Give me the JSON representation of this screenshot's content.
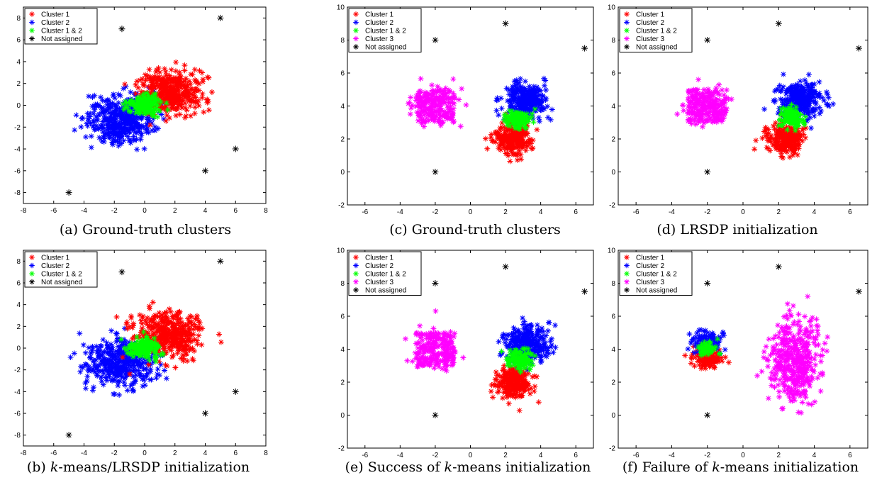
{
  "captions": {
    "a": {
      "label": "(a)",
      "text": "Ground-truth clusters"
    },
    "b": {
      "label": "(b)",
      "emph": "k",
      "text": "-means/LRSDP initialization"
    },
    "c": {
      "label": "(c)",
      "text": "Ground-truth clusters"
    },
    "d": {
      "label": "(d)",
      "text": "LRSDP initialization"
    },
    "e": {
      "label": "(e)",
      "pre": "Success of",
      "emph": "k",
      "text": "-means initialization"
    },
    "f": {
      "label": "(f)",
      "pre": "Failure of",
      "emph": "k",
      "text": "-means initialization"
    }
  },
  "colors": {
    "red": "#ff0000",
    "blue": "#0000ff",
    "green": "#00ff00",
    "magenta": "#ff00ff",
    "black": "#000000"
  },
  "chart_data": [
    {
      "id": "a",
      "type": "scatter",
      "xlim": [
        -8,
        8
      ],
      "ylim": [
        -9,
        9
      ],
      "xticks": [
        -8,
        -6,
        -4,
        -2,
        0,
        2,
        4,
        6,
        8
      ],
      "yticks": [
        -8,
        -6,
        -4,
        -2,
        0,
        2,
        4,
        6,
        8
      ],
      "legend": {
        "position": "top-left",
        "entries": [
          "Cluster 1",
          "Cluster 2",
          "Cluster 1 & 2",
          "Not assigned"
        ]
      },
      "clusters": [
        {
          "name": "Cluster 2",
          "color": "blue",
          "center": [
            -1.6,
            -1.3
          ],
          "spread": [
            1.1,
            1.1
          ],
          "count": 420
        },
        {
          "name": "Cluster 1",
          "color": "red",
          "center": [
            1.6,
            1.2
          ],
          "spread": [
            1.05,
            1.0
          ],
          "count": 420
        },
        {
          "name": "Cluster 1 & 2",
          "color": "green",
          "center": [
            0,
            0
          ],
          "spread": [
            0.55,
            0.45
          ],
          "count": 170
        }
      ],
      "outliers": [
        [
          -1.5,
          7
        ],
        [
          5,
          8
        ],
        [
          6,
          -4
        ],
        [
          4,
          -6
        ],
        [
          -5,
          -8
        ]
      ]
    },
    {
      "id": "b",
      "type": "scatter",
      "xlim": [
        -8,
        8
      ],
      "ylim": [
        -9,
        9
      ],
      "xticks": [
        -8,
        -6,
        -4,
        -2,
        0,
        2,
        4,
        6,
        8
      ],
      "yticks": [
        -8,
        -6,
        -4,
        -2,
        0,
        2,
        4,
        6,
        8
      ],
      "legend": {
        "position": "top-left",
        "entries": [
          "Cluster 1",
          "Cluster 2",
          "Cluster 1 & 2",
          "Not assigned"
        ]
      },
      "clusters": [
        {
          "name": "Cluster 2",
          "color": "blue",
          "center": [
            -1.6,
            -1.3
          ],
          "spread": [
            1.1,
            1.1
          ],
          "count": 420
        },
        {
          "name": "Cluster 1",
          "color": "red",
          "center": [
            1.6,
            1.2
          ],
          "spread": [
            1.05,
            1.0
          ],
          "count": 420
        },
        {
          "name": "Cluster 1 & 2",
          "color": "green",
          "center": [
            0,
            0
          ],
          "spread": [
            0.55,
            0.45
          ],
          "count": 170
        }
      ],
      "outliers": [
        [
          -1.5,
          7
        ],
        [
          5,
          8
        ],
        [
          6,
          -4
        ],
        [
          4,
          -6
        ],
        [
          -5,
          -8
        ]
      ]
    },
    {
      "id": "c",
      "type": "scatter",
      "xlim": [
        -7,
        7
      ],
      "ylim": [
        -2,
        10
      ],
      "xticks": [
        -6,
        -4,
        -2,
        0,
        2,
        4,
        6
      ],
      "yticks": [
        -2,
        0,
        2,
        4,
        6,
        8,
        10
      ],
      "legend": {
        "position": "top-left",
        "entries": [
          "Cluster 1",
          "Cluster 2",
          "Cluster 1 & 2",
          "Cluster 3",
          "Not assigned"
        ]
      },
      "clusters": [
        {
          "name": "Cluster 3",
          "color": "magenta",
          "center": [
            -2,
            4
          ],
          "spread": [
            0.55,
            0.5
          ],
          "count": 260,
          "box": true
        },
        {
          "name": "Cluster 2",
          "color": "blue",
          "center": [
            3.2,
            4.3
          ],
          "spread": [
            0.6,
            0.55
          ],
          "count": 320
        },
        {
          "name": "Cluster 1",
          "color": "red",
          "center": [
            2.4,
            2.0
          ],
          "spread": [
            0.5,
            0.45
          ],
          "count": 260
        },
        {
          "name": "Cluster 1 & 2",
          "color": "green",
          "center": [
            2.7,
            3.2
          ],
          "spread": [
            0.35,
            0.28
          ],
          "count": 130
        }
      ],
      "outliers": [
        [
          -2,
          8
        ],
        [
          2,
          9
        ],
        [
          6.5,
          7.5
        ],
        [
          -2,
          0
        ]
      ]
    },
    {
      "id": "d",
      "type": "scatter",
      "xlim": [
        -7,
        7
      ],
      "ylim": [
        -2,
        10
      ],
      "xticks": [
        -6,
        -4,
        -2,
        0,
        2,
        4,
        6
      ],
      "yticks": [
        -2,
        0,
        2,
        4,
        6,
        8,
        10
      ],
      "legend": {
        "position": "top-left",
        "entries": [
          "Cluster 1",
          "Cluster 2",
          "Cluster 1 & 2",
          "Cluster 3",
          "Not assigned"
        ]
      },
      "clusters": [
        {
          "name": "Cluster 3",
          "color": "magenta",
          "center": [
            -2,
            4
          ],
          "spread": [
            0.55,
            0.5
          ],
          "count": 260,
          "box": true
        },
        {
          "name": "Cluster 2",
          "color": "blue",
          "center": [
            3.2,
            4.3
          ],
          "spread": [
            0.6,
            0.55
          ],
          "count": 320
        },
        {
          "name": "Cluster 1",
          "color": "red",
          "center": [
            2.4,
            2.0
          ],
          "spread": [
            0.5,
            0.45
          ],
          "count": 260
        },
        {
          "name": "Cluster 1 & 2",
          "color": "green",
          "center": [
            2.7,
            3.3
          ],
          "spread": [
            0.32,
            0.28
          ],
          "count": 130
        }
      ],
      "outliers": [
        [
          -2,
          8
        ],
        [
          2,
          9
        ],
        [
          6.5,
          7.5
        ],
        [
          -2,
          0
        ]
      ]
    },
    {
      "id": "e",
      "type": "scatter",
      "xlim": [
        -7,
        7
      ],
      "ylim": [
        -2,
        10
      ],
      "xticks": [
        -6,
        -4,
        -2,
        0,
        2,
        4,
        6
      ],
      "yticks": [
        -2,
        0,
        2,
        4,
        6,
        8,
        10
      ],
      "legend": {
        "position": "top-left",
        "entries": [
          "Cluster 1",
          "Cluster 2",
          "Cluster 1 & 2",
          "Cluster 3",
          "Not assigned"
        ]
      },
      "clusters": [
        {
          "name": "Cluster 3",
          "color": "magenta",
          "center": [
            -2,
            4
          ],
          "spread": [
            0.55,
            0.5
          ],
          "count": 260,
          "box": true
        },
        {
          "name": "Cluster 2",
          "color": "blue",
          "center": [
            3.2,
            4.3
          ],
          "spread": [
            0.6,
            0.55
          ],
          "count": 320
        },
        {
          "name": "Cluster 1",
          "color": "red",
          "center": [
            2.4,
            2.0
          ],
          "spread": [
            0.5,
            0.45
          ],
          "count": 260
        },
        {
          "name": "Cluster 1 & 2",
          "color": "green",
          "center": [
            2.8,
            3.4
          ],
          "spread": [
            0.35,
            0.28
          ],
          "count": 130
        }
      ],
      "outliers": [
        [
          -2,
          8
        ],
        [
          2,
          9
        ],
        [
          6.5,
          7.5
        ],
        [
          -2,
          0
        ]
      ]
    },
    {
      "id": "f",
      "type": "scatter",
      "xlim": [
        -7,
        7
      ],
      "ylim": [
        -2,
        10
      ],
      "xticks": [
        -6,
        -4,
        -2,
        0,
        2,
        4,
        6
      ],
      "yticks": [
        -2,
        0,
        2,
        4,
        6,
        8,
        10
      ],
      "legend": {
        "position": "top-left",
        "entries": [
          "Cluster 1",
          "Cluster 2",
          "Cluster 1 & 2",
          "Cluster 3",
          "Not assigned"
        ]
      },
      "clusters": [
        {
          "name": "Cluster 3",
          "color": "magenta",
          "center": [
            2.8,
            3.2
          ],
          "spread": [
            0.7,
            1.2
          ],
          "count": 420
        },
        {
          "name": "Cluster 1",
          "color": "red",
          "center": [
            -2,
            3.5
          ],
          "spread": [
            0.5,
            0.3
          ],
          "count": 130
        },
        {
          "name": "Cluster 2",
          "color": "blue",
          "center": [
            -2,
            4.5
          ],
          "spread": [
            0.45,
            0.3
          ],
          "count": 110
        },
        {
          "name": "Cluster 1 & 2",
          "color": "green",
          "center": [
            -1.9,
            4.0
          ],
          "spread": [
            0.28,
            0.2
          ],
          "count": 60
        }
      ],
      "outliers": [
        [
          -2,
          8
        ],
        [
          2,
          9
        ],
        [
          6.5,
          7.5
        ],
        [
          -2,
          0
        ]
      ]
    }
  ]
}
